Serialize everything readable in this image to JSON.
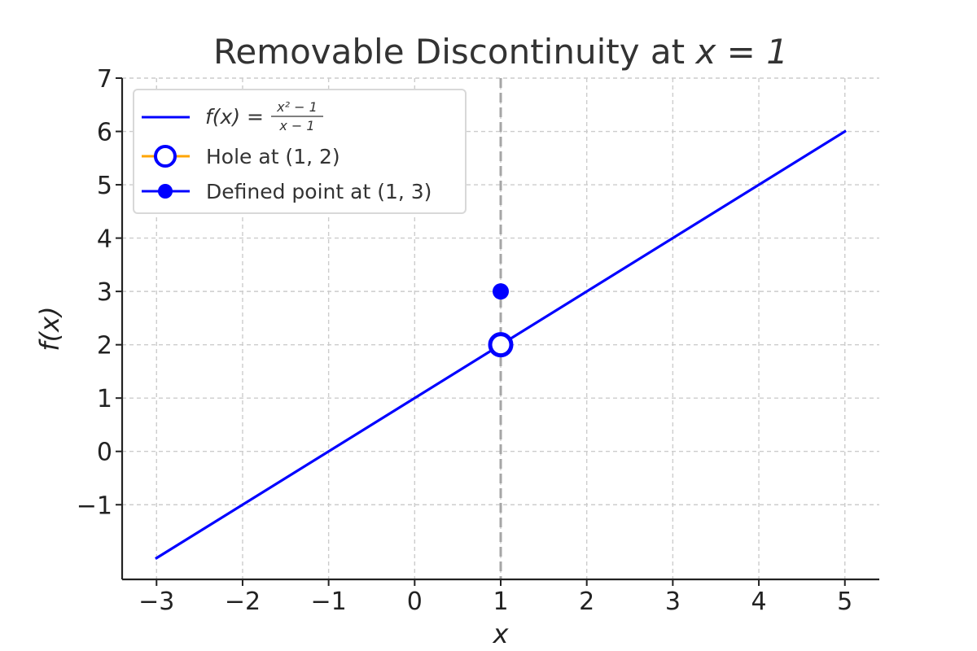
{
  "chart_data": {
    "type": "line",
    "title": "Removable Discontinuity at x = 1",
    "title_prefix": "Removable Discontinuity at ",
    "title_math": "x = 1",
    "xlabel": "x",
    "ylabel": "f(x)",
    "xlim": [
      -3.4,
      5.4
    ],
    "ylim": [
      -2.4,
      7
    ],
    "x_ticks": [
      -3,
      -2,
      -1,
      0,
      1,
      2,
      3,
      4,
      5
    ],
    "y_ticks": [
      -1,
      0,
      1,
      2,
      3,
      4,
      5,
      6,
      7
    ],
    "grid": true,
    "legend_position": "top-left",
    "series": [
      {
        "name": "f(x) = (x² − 1)/(x − 1)",
        "kind": "line",
        "color": "#0000ff",
        "x": [
          -3,
          5
        ],
        "y": [
          -2,
          6
        ]
      },
      {
        "name": "Hole at (1, 2)",
        "kind": "hole",
        "color": "#0000ff",
        "legend_line_color": "#ffa500",
        "x": [
          1
        ],
        "y": [
          2
        ]
      },
      {
        "name": "Defined point at (1, 3)",
        "kind": "point",
        "color": "#0000ff",
        "x": [
          1
        ],
        "y": [
          3
        ]
      }
    ],
    "vertical_line": {
      "x": 1,
      "color": "#a6a6a6",
      "style": "dashed"
    }
  },
  "legend": {
    "formula": {
      "lhs": "f(x) =",
      "numerator": "x² − 1",
      "denominator": "x − 1"
    }
  }
}
